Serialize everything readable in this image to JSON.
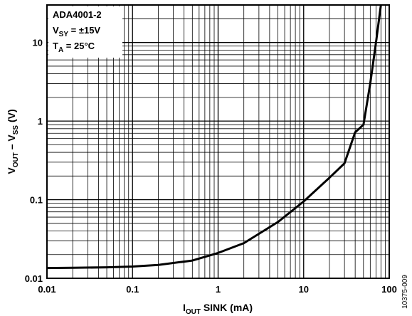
{
  "chart_data": {
    "type": "line",
    "title": "",
    "x_axis": {
      "label_main": "I",
      "label_sub": "OUT",
      "label_rest": " SINK (mA)",
      "scale": "log",
      "range": [
        0.01,
        100
      ],
      "ticks": [
        "0.01",
        "0.1",
        "1",
        "10",
        "100"
      ]
    },
    "y_axis": {
      "label_a": "V",
      "label_a_sub": "OUT",
      "label_mid": " – V",
      "label_b_sub": "SS",
      "label_rest": " (V)",
      "scale": "log",
      "range": [
        0.01,
        30
      ],
      "ticks": [
        "0.01",
        "0.1",
        "1",
        "10"
      ]
    },
    "grid": true,
    "annotation": {
      "line1": "ADA4001-2",
      "line2_main": "V",
      "line2_sub": "SY",
      "line2_rest": " = ±15V",
      "line3_main": "T",
      "line3_sub": "A",
      "line3_rest": " = 25°C"
    },
    "figure_code": "10375-009",
    "series": [
      {
        "x": [
          0.01,
          0.02,
          0.05,
          0.1,
          0.2,
          0.5,
          1,
          2,
          5,
          10,
          20,
          30,
          40,
          50,
          60,
          70,
          80
        ],
        "y": [
          0.0135,
          0.0136,
          0.0138,
          0.0141,
          0.0148,
          0.0168,
          0.021,
          0.028,
          0.052,
          0.095,
          0.19,
          0.29,
          0.72,
          0.9,
          3.0,
          10,
          30
        ]
      }
    ],
    "colors": {
      "line": "#000000",
      "grid": "#000000",
      "background": "#ffffff"
    }
  }
}
